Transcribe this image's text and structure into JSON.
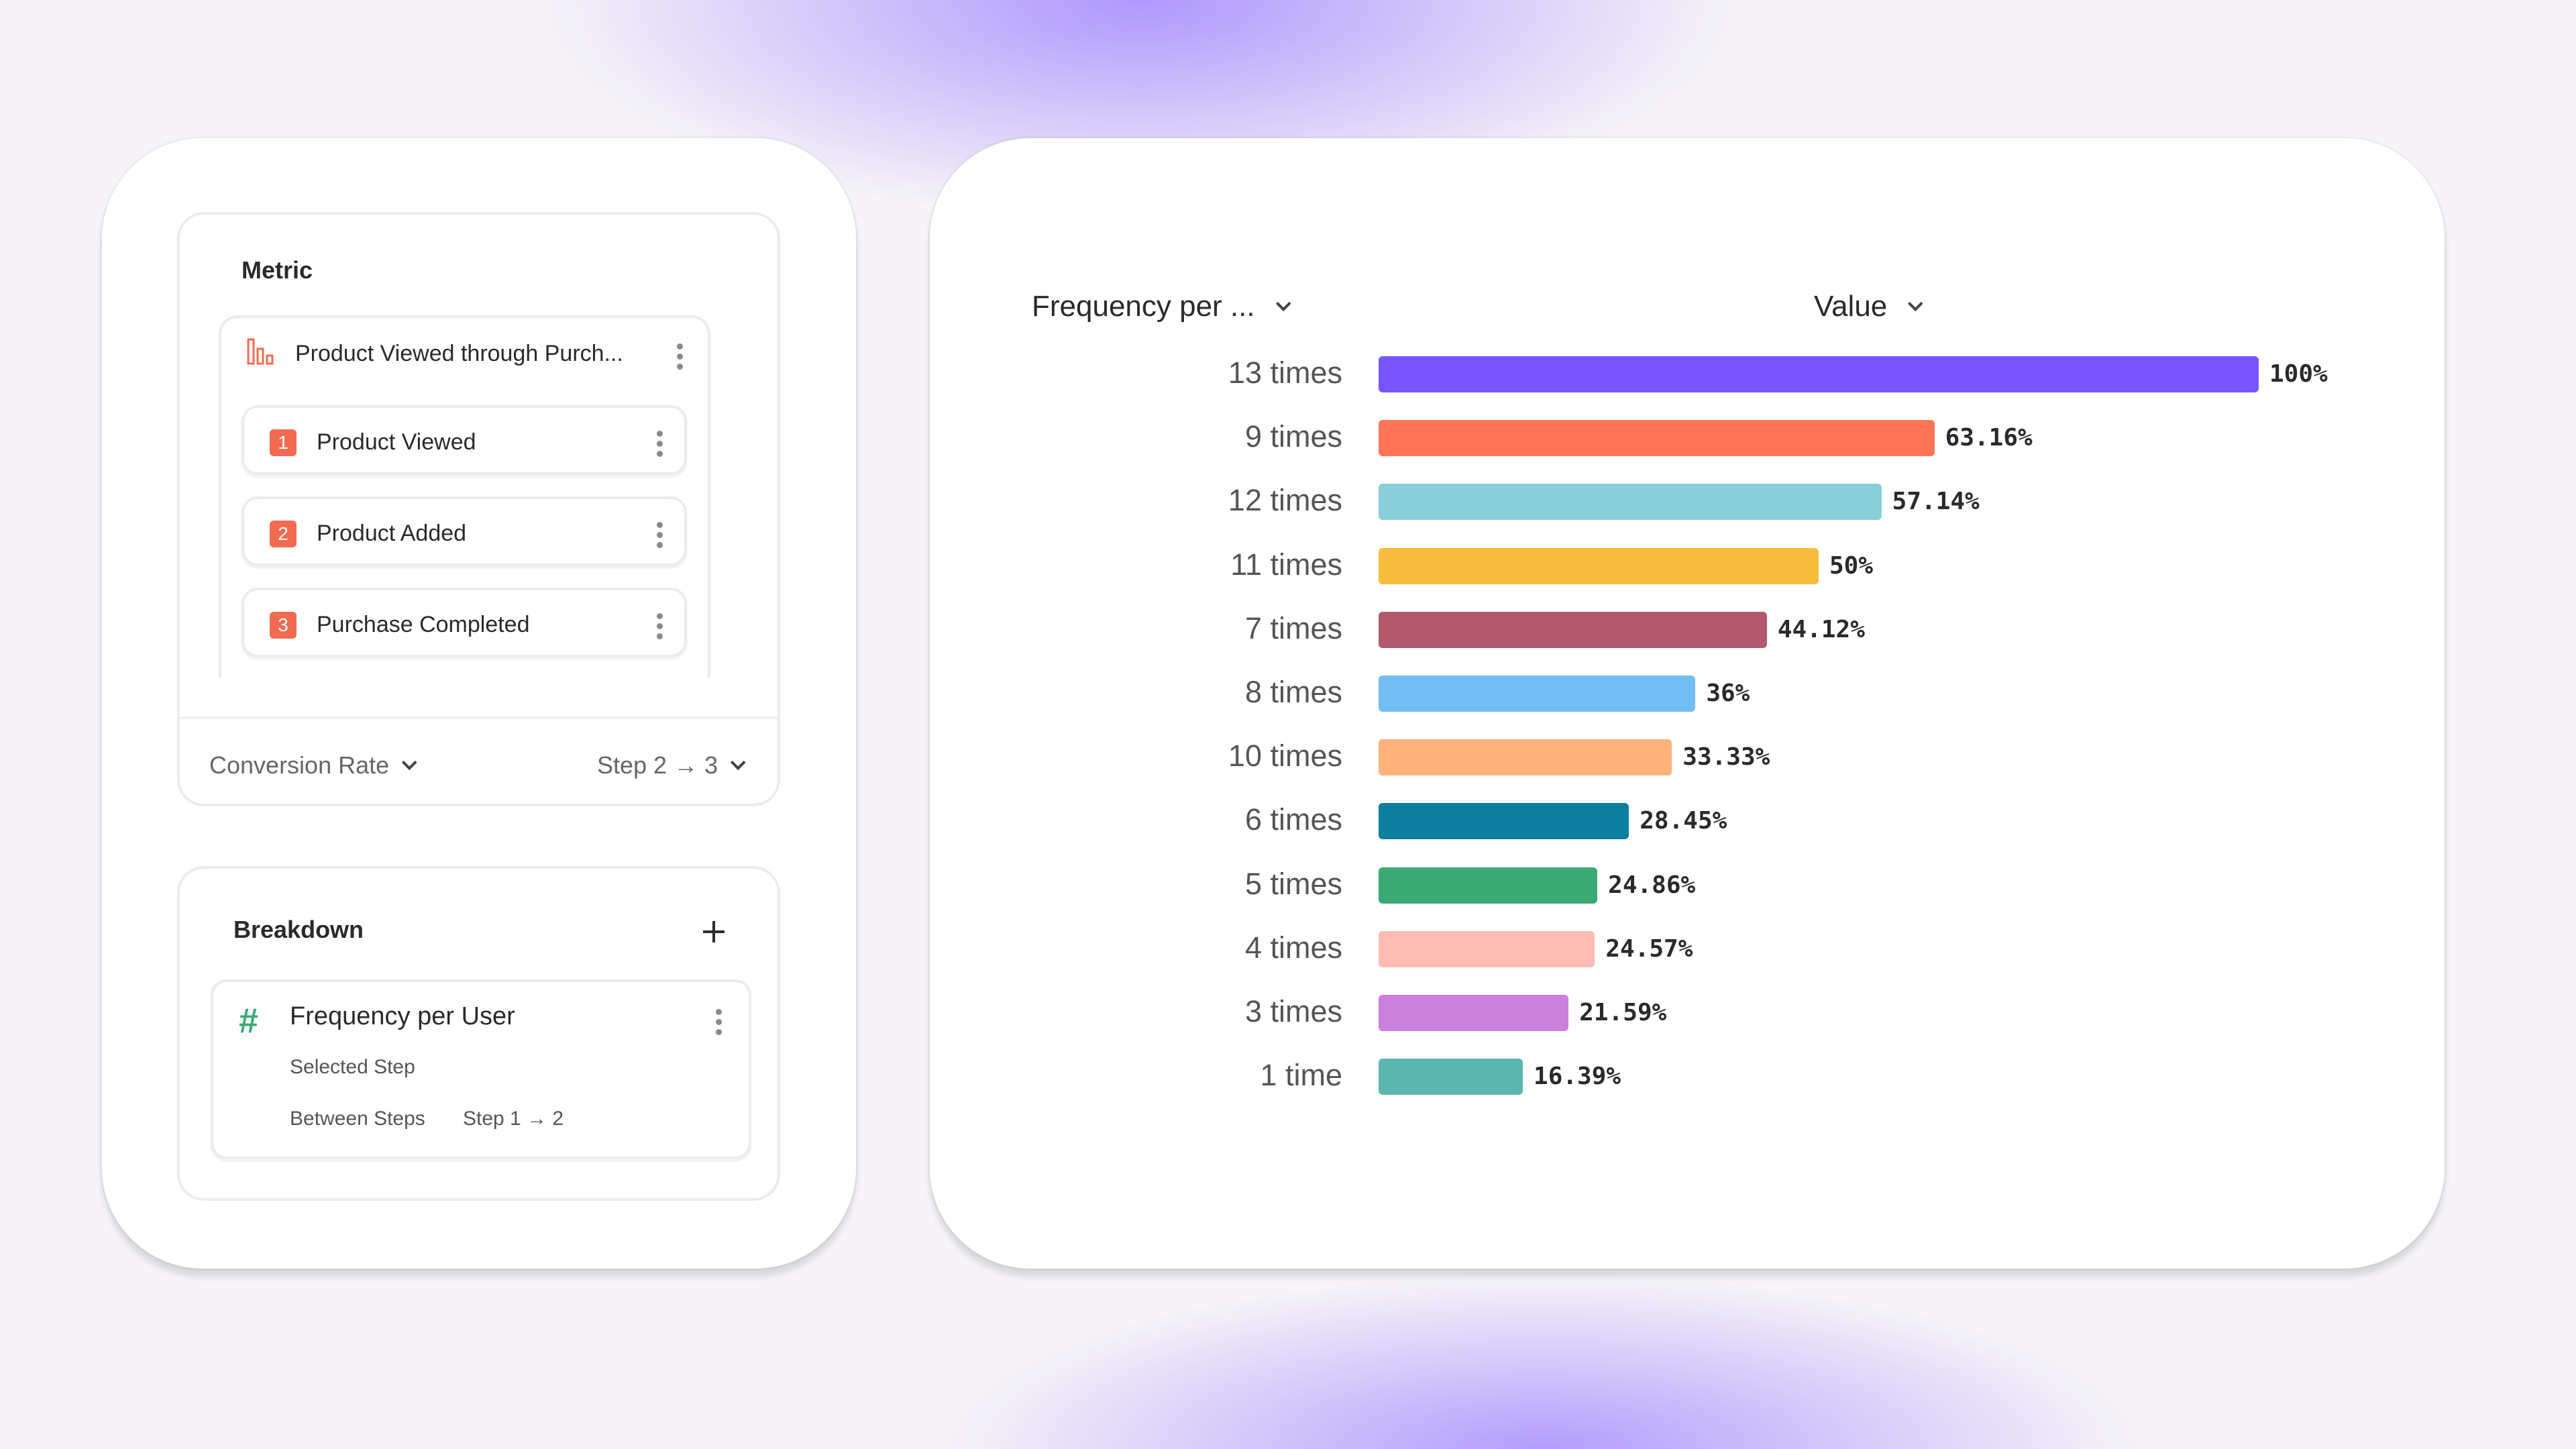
{
  "metric": {
    "title": "Metric",
    "group_title": "Product Viewed through Purch...",
    "group_icon": "funnel-bars-icon",
    "steps": [
      {
        "number": "1",
        "label": "Product Viewed"
      },
      {
        "number": "2",
        "label": "Product Added"
      },
      {
        "number": "3",
        "label": "Purchase Completed"
      }
    ],
    "measure": "Conversion Rate",
    "step_range": "Step 2 → 3"
  },
  "breakdown": {
    "title": "Breakdown",
    "item": {
      "icon": "hash-icon",
      "label": "Frequency per User",
      "selected_step": "Selected Step",
      "between_steps_label": "Between Steps",
      "between_steps_value": "Step 1 → 2"
    }
  },
  "chart_header": {
    "dimension": "Frequency per ...",
    "measure": "Value"
  },
  "chart_data": {
    "type": "bar",
    "orientation": "horizontal",
    "categories": [
      "13 times",
      "9 times",
      "12 times",
      "11 times",
      "7 times",
      "8 times",
      "10 times",
      "6 times",
      "5 times",
      "4 times",
      "3 times",
      "1 time"
    ],
    "values": [
      100,
      63.16,
      57.14,
      50,
      44.12,
      36,
      33.33,
      28.45,
      24.86,
      24.57,
      21.59,
      16.39
    ],
    "value_labels": [
      "100%",
      "63.16%",
      "57.14%",
      "50%",
      "44.12%",
      "36%",
      "33.33%",
      "28.45%",
      "24.86%",
      "24.57%",
      "21.59%",
      "16.39%"
    ],
    "colors": [
      "#7856FF",
      "#FF7557",
      "#89CFDA",
      "#F9BD3D",
      "#B2596E",
      "#72BEF4",
      "#FFB27A",
      "#0D7EA0",
      "#3BA974",
      "#FEBBB2",
      "#CA80DC",
      "#5BB7AF"
    ],
    "xlim": [
      0,
      100
    ],
    "unit": "%",
    "grid": false,
    "legend": "none"
  }
}
